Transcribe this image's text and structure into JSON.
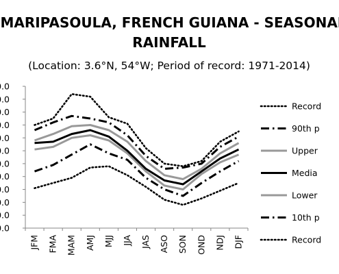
{
  "chart_data": {
    "type": "line",
    "title_line1": "MARIPASOULA, FRENCH GUIANA - SEASONAL",
    "title_line2": "RAINFALL",
    "subtitle": "(Location: 3.6°N, 54°W; Period of record: 1971-2014)",
    "categories": [
      "JFM",
      "FMA",
      "MAM",
      "AMJ",
      "MJJ",
      "JJA",
      "JAS",
      "ASO",
      "SON",
      "OND",
      "NDJ",
      "DJF"
    ],
    "ytick_labels": [
      "0.0",
      "0.0",
      "0.0",
      "0.0",
      "0.0",
      "0.0",
      "0.0",
      "0.0",
      "0.0",
      "0.0",
      "0.0",
      "0.0"
    ],
    "ylim": [
      0,
      11
    ],
    "grid": false,
    "legend_position": "right",
    "series": [
      {
        "name": "Record",
        "style": "dotted",
        "color": "#000000",
        "values": [
          8.0,
          8.5,
          10.4,
          10.2,
          8.6,
          8.1,
          6.2,
          5.0,
          4.8,
          5.2,
          6.7,
          7.5
        ]
      },
      {
        "name": "90th p",
        "style": "dashdot",
        "color": "#000000",
        "values": [
          7.6,
          8.2,
          8.7,
          8.5,
          8.2,
          7.2,
          5.6,
          4.6,
          4.7,
          5.0,
          6.3,
          7.1
        ]
      },
      {
        "name": "Upper",
        "style": "solid-gray",
        "color": "#999999",
        "values": [
          6.8,
          7.3,
          7.9,
          8.0,
          7.6,
          6.7,
          5.2,
          4.1,
          3.8,
          4.6,
          5.8,
          6.6
        ]
      },
      {
        "name": "Media",
        "style": "solid",
        "color": "#000000",
        "values": [
          6.6,
          6.7,
          7.3,
          7.6,
          7.1,
          6.0,
          4.6,
          3.7,
          3.4,
          4.4,
          5.4,
          6.1
        ]
      },
      {
        "name": "Lower",
        "style": "solid-gray",
        "color": "#999999",
        "values": [
          6.1,
          6.3,
          7.0,
          7.2,
          6.8,
          5.8,
          4.4,
          3.3,
          3.0,
          4.2,
          5.1,
          5.7
        ]
      },
      {
        "name": "10th p",
        "style": "dashdot",
        "color": "#000000",
        "values": [
          4.4,
          4.9,
          5.7,
          6.5,
          5.8,
          5.3,
          3.9,
          3.0,
          2.5,
          3.5,
          4.4,
          5.2
        ]
      },
      {
        "name": "Record",
        "style": "dotted",
        "color": "#000000",
        "values": [
          3.1,
          3.5,
          3.9,
          4.7,
          4.8,
          4.1,
          3.2,
          2.2,
          1.8,
          2.3,
          2.9,
          3.5
        ]
      }
    ]
  }
}
